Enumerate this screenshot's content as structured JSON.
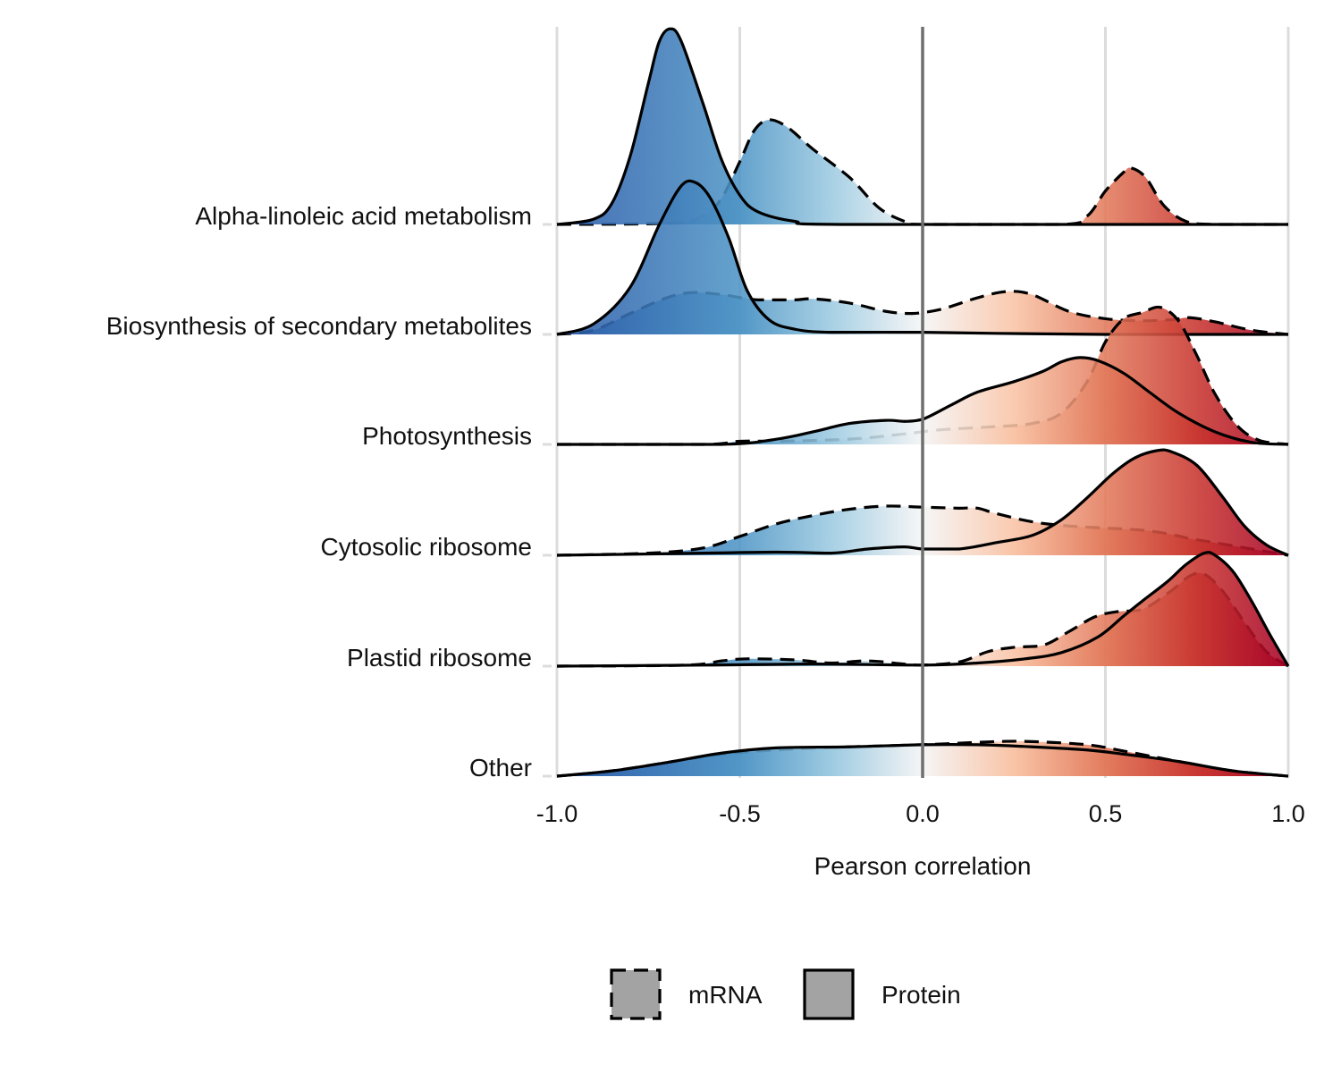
{
  "chart_data": {
    "type": "ridgeline-density",
    "title": "",
    "xlabel": "Pearson correlation",
    "ylabel": "",
    "xlim": [
      -1.0,
      1.0
    ],
    "x_ticks": [
      -1.0,
      -0.5,
      0.0,
      0.5,
      1.0
    ],
    "x_tick_labels": [
      "-1.0",
      "-0.5",
      "0.0",
      "0.5",
      "1.0"
    ],
    "reference_line_x": 0.0,
    "grid": "vertical major gridlines",
    "fill_gradient": {
      "type": "diverging, mapped to x",
      "stops": [
        {
          "x": -1.0,
          "color": "#2a5aa8"
        },
        {
          "x": -0.5,
          "color": "#4f95c6"
        },
        {
          "x": -0.25,
          "color": "#9ccae1"
        },
        {
          "x": 0.0,
          "color": "#f5f5f5"
        },
        {
          "x": 0.25,
          "color": "#f9c3a5"
        },
        {
          "x": 0.5,
          "color": "#e27a5c"
        },
        {
          "x": 0.75,
          "color": "#c8352f"
        },
        {
          "x": 1.0,
          "color": "#a50026"
        }
      ]
    },
    "series_styles": [
      {
        "name": "mRNA",
        "line": "dashed"
      },
      {
        "name": "Protein",
        "line": "solid"
      }
    ],
    "legend": {
      "placement": "bottom",
      "entries": [
        "mRNA",
        "Protein"
      ]
    },
    "categories": [
      {
        "label": "Alpha-linoleic acid metabolism",
        "mRNA": [
          [
            -1.0,
            0
          ],
          [
            -0.7,
            0.01
          ],
          [
            -0.6,
            0.08
          ],
          [
            -0.55,
            0.25
          ],
          [
            -0.5,
            0.6
          ],
          [
            -0.46,
            0.9
          ],
          [
            -0.42,
            1.0
          ],
          [
            -0.37,
            0.93
          ],
          [
            -0.3,
            0.72
          ],
          [
            -0.2,
            0.45
          ],
          [
            -0.12,
            0.16
          ],
          [
            -0.05,
            0.03
          ],
          [
            0.0,
            0
          ],
          [
            0.38,
            0
          ],
          [
            0.45,
            0.08
          ],
          [
            0.5,
            0.32
          ],
          [
            0.55,
            0.5
          ],
          [
            0.57,
            0.54
          ],
          [
            0.61,
            0.45
          ],
          [
            0.66,
            0.18
          ],
          [
            0.72,
            0.03
          ],
          [
            0.8,
            0
          ],
          [
            1.0,
            0
          ]
        ],
        "Protein": [
          [
            -1.0,
            0
          ],
          [
            -0.9,
            0.05
          ],
          [
            -0.85,
            0.2
          ],
          [
            -0.8,
            0.65
          ],
          [
            -0.75,
            1.35
          ],
          [
            -0.72,
            1.75
          ],
          [
            -0.69,
            1.87
          ],
          [
            -0.66,
            1.75
          ],
          [
            -0.6,
            1.15
          ],
          [
            -0.55,
            0.62
          ],
          [
            -0.5,
            0.28
          ],
          [
            -0.45,
            0.12
          ],
          [
            -0.35,
            0.03
          ],
          [
            -0.2,
            0
          ],
          [
            1.0,
            0
          ]
        ]
      },
      {
        "label": "Biosynthesis of secondary metabolites",
        "mRNA": [
          [
            -1.0,
            0
          ],
          [
            -0.9,
            0.04
          ],
          [
            -0.8,
            0.2
          ],
          [
            -0.7,
            0.35
          ],
          [
            -0.63,
            0.4
          ],
          [
            -0.55,
            0.38
          ],
          [
            -0.45,
            0.33
          ],
          [
            -0.35,
            0.33
          ],
          [
            -0.3,
            0.34
          ],
          [
            -0.2,
            0.3
          ],
          [
            -0.1,
            0.22
          ],
          [
            -0.03,
            0.2
          ],
          [
            0.05,
            0.24
          ],
          [
            0.15,
            0.35
          ],
          [
            0.23,
            0.41
          ],
          [
            0.3,
            0.38
          ],
          [
            0.4,
            0.22
          ],
          [
            0.5,
            0.15
          ],
          [
            0.6,
            0.13
          ],
          [
            0.68,
            0.14
          ],
          [
            0.73,
            0.16
          ],
          [
            0.8,
            0.12
          ],
          [
            0.9,
            0.04
          ],
          [
            1.0,
            0
          ]
        ],
        "Protein": [
          [
            -1.0,
            0
          ],
          [
            -0.9,
            0.1
          ],
          [
            -0.8,
            0.45
          ],
          [
            -0.72,
            1.05
          ],
          [
            -0.66,
            1.42
          ],
          [
            -0.62,
            1.45
          ],
          [
            -0.58,
            1.3
          ],
          [
            -0.53,
            0.92
          ],
          [
            -0.48,
            0.42
          ],
          [
            -0.42,
            0.14
          ],
          [
            -0.35,
            0.05
          ],
          [
            -0.25,
            0.02
          ],
          [
            0.0,
            0.02
          ],
          [
            0.2,
            0.01
          ],
          [
            0.5,
            0
          ],
          [
            1.0,
            0
          ]
        ]
      },
      {
        "label": "Photosynthesis",
        "mRNA": [
          [
            -1.0,
            0
          ],
          [
            -0.6,
            0
          ],
          [
            -0.5,
            0.03
          ],
          [
            -0.4,
            0.03
          ],
          [
            -0.2,
            0.05
          ],
          [
            -0.05,
            0.1
          ],
          [
            0.05,
            0.14
          ],
          [
            0.2,
            0.17
          ],
          [
            0.3,
            0.2
          ],
          [
            0.38,
            0.3
          ],
          [
            0.45,
            0.6
          ],
          [
            0.5,
            0.98
          ],
          [
            0.55,
            1.2
          ],
          [
            0.6,
            1.26
          ],
          [
            0.65,
            1.31
          ],
          [
            0.7,
            1.18
          ],
          [
            0.75,
            0.85
          ],
          [
            0.8,
            0.48
          ],
          [
            0.86,
            0.18
          ],
          [
            0.92,
            0.04
          ],
          [
            1.0,
            0
          ]
        ],
        "Protein": [
          [
            -1.0,
            0
          ],
          [
            -0.55,
            0
          ],
          [
            -0.4,
            0.05
          ],
          [
            -0.3,
            0.12
          ],
          [
            -0.2,
            0.2
          ],
          [
            -0.1,
            0.23
          ],
          [
            -0.05,
            0.22
          ],
          [
            0.0,
            0.24
          ],
          [
            0.08,
            0.38
          ],
          [
            0.15,
            0.5
          ],
          [
            0.25,
            0.6
          ],
          [
            0.33,
            0.7
          ],
          [
            0.38,
            0.79
          ],
          [
            0.43,
            0.83
          ],
          [
            0.48,
            0.8
          ],
          [
            0.55,
            0.68
          ],
          [
            0.62,
            0.5
          ],
          [
            0.7,
            0.3
          ],
          [
            0.8,
            0.12
          ],
          [
            0.9,
            0.02
          ],
          [
            1.0,
            0
          ]
        ]
      },
      {
        "label": "Cytosolic ribosome",
        "mRNA": [
          [
            -1.0,
            0
          ],
          [
            -0.75,
            0.02
          ],
          [
            -0.6,
            0.07
          ],
          [
            -0.5,
            0.18
          ],
          [
            -0.4,
            0.3
          ],
          [
            -0.3,
            0.38
          ],
          [
            -0.2,
            0.44
          ],
          [
            -0.1,
            0.47
          ],
          [
            0.0,
            0.46
          ],
          [
            0.1,
            0.45
          ],
          [
            0.15,
            0.45
          ],
          [
            0.2,
            0.4
          ],
          [
            0.3,
            0.32
          ],
          [
            0.4,
            0.28
          ],
          [
            0.5,
            0.26
          ],
          [
            0.6,
            0.24
          ],
          [
            0.68,
            0.2
          ],
          [
            0.73,
            0.16
          ],
          [
            0.8,
            0.12
          ],
          [
            0.9,
            0.06
          ],
          [
            1.0,
            0
          ]
        ],
        "Protein": [
          [
            -1.0,
            0
          ],
          [
            -0.6,
            0.02
          ],
          [
            -0.4,
            0.03
          ],
          [
            -0.25,
            0.02
          ],
          [
            -0.15,
            0.06
          ],
          [
            -0.05,
            0.08
          ],
          [
            0.0,
            0.06
          ],
          [
            0.1,
            0.06
          ],
          [
            0.2,
            0.12
          ],
          [
            0.3,
            0.19
          ],
          [
            0.38,
            0.34
          ],
          [
            0.45,
            0.55
          ],
          [
            0.52,
            0.78
          ],
          [
            0.58,
            0.93
          ],
          [
            0.64,
            1.0
          ],
          [
            0.68,
            0.99
          ],
          [
            0.75,
            0.86
          ],
          [
            0.82,
            0.56
          ],
          [
            0.88,
            0.28
          ],
          [
            0.94,
            0.1
          ],
          [
            1.0,
            0
          ]
        ]
      },
      {
        "label": "Plastid ribosome",
        "mRNA": [
          [
            -1.0,
            0
          ],
          [
            -0.65,
            0.01
          ],
          [
            -0.55,
            0.05
          ],
          [
            -0.48,
            0.07
          ],
          [
            -0.35,
            0.06
          ],
          [
            -0.25,
            0.03
          ],
          [
            -0.15,
            0.05
          ],
          [
            -0.05,
            0.02
          ],
          [
            0.0,
            0.01
          ],
          [
            0.1,
            0.04
          ],
          [
            0.18,
            0.14
          ],
          [
            0.25,
            0.18
          ],
          [
            0.33,
            0.2
          ],
          [
            0.4,
            0.33
          ],
          [
            0.47,
            0.47
          ],
          [
            0.53,
            0.52
          ],
          [
            0.6,
            0.54
          ],
          [
            0.68,
            0.72
          ],
          [
            0.73,
            0.86
          ],
          [
            0.77,
            0.88
          ],
          [
            0.82,
            0.72
          ],
          [
            0.88,
            0.42
          ],
          [
            0.94,
            0.14
          ],
          [
            1.0,
            0
          ]
        ],
        "Protein": [
          [
            -1.0,
            0
          ],
          [
            -0.6,
            0.01
          ],
          [
            -0.3,
            0.02
          ],
          [
            0.0,
            0.01
          ],
          [
            0.15,
            0.03
          ],
          [
            0.28,
            0.07
          ],
          [
            0.38,
            0.13
          ],
          [
            0.48,
            0.28
          ],
          [
            0.55,
            0.48
          ],
          [
            0.6,
            0.62
          ],
          [
            0.67,
            0.81
          ],
          [
            0.72,
            0.97
          ],
          [
            0.77,
            1.08
          ],
          [
            0.8,
            1.06
          ],
          [
            0.85,
            0.9
          ],
          [
            0.9,
            0.62
          ],
          [
            0.95,
            0.3
          ],
          [
            1.0,
            0
          ]
        ]
      },
      {
        "label": "Other",
        "mRNA": [
          [
            -1.0,
            0
          ],
          [
            -0.85,
            0.05
          ],
          [
            -0.7,
            0.13
          ],
          [
            -0.55,
            0.21
          ],
          [
            -0.4,
            0.25
          ],
          [
            -0.2,
            0.28
          ],
          [
            0.0,
            0.3
          ],
          [
            0.2,
            0.33
          ],
          [
            0.3,
            0.33
          ],
          [
            0.45,
            0.3
          ],
          [
            0.55,
            0.24
          ],
          [
            0.7,
            0.14
          ],
          [
            0.85,
            0.05
          ],
          [
            1.0,
            0
          ]
        ],
        "Protein": [
          [
            -1.0,
            0
          ],
          [
            -0.85,
            0.05
          ],
          [
            -0.7,
            0.13
          ],
          [
            -0.55,
            0.22
          ],
          [
            -0.4,
            0.27
          ],
          [
            -0.2,
            0.28
          ],
          [
            0.0,
            0.3
          ],
          [
            0.15,
            0.3
          ],
          [
            0.3,
            0.28
          ],
          [
            0.45,
            0.25
          ],
          [
            0.55,
            0.21
          ],
          [
            0.7,
            0.14
          ],
          [
            0.85,
            0.05
          ],
          [
            1.0,
            0
          ]
        ]
      }
    ]
  }
}
